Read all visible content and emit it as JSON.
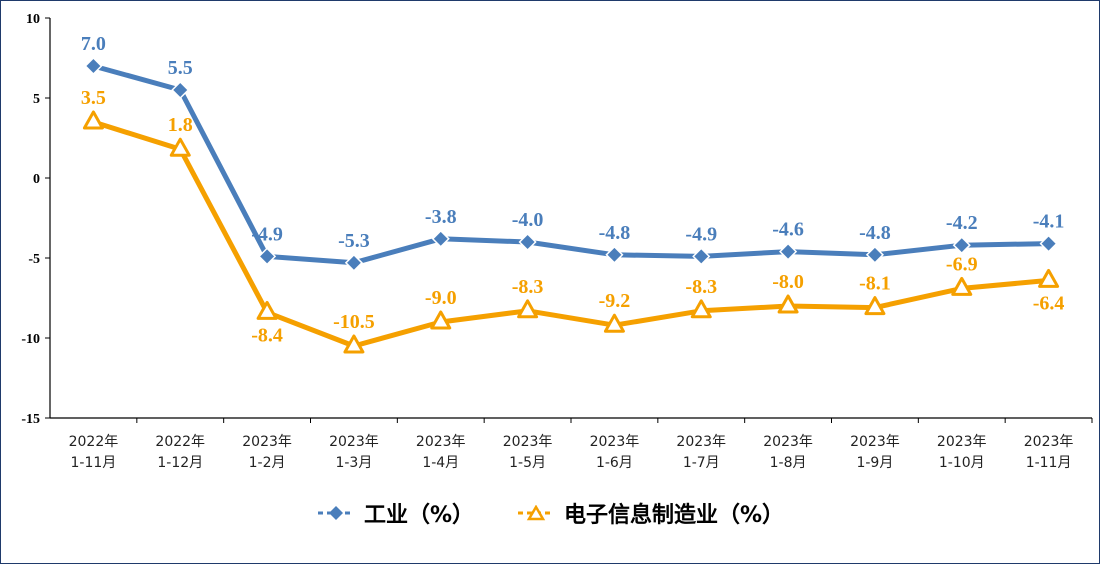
{
  "chart_data": {
    "type": "line",
    "categories": [
      [
        "2022年",
        "1-11月"
      ],
      [
        "2022年",
        "1-12月"
      ],
      [
        "2023年",
        "1-2月"
      ],
      [
        "2023年",
        "1-3月"
      ],
      [
        "2023年",
        "1-4月"
      ],
      [
        "2023年",
        "1-5月"
      ],
      [
        "2023年",
        "1-6月"
      ],
      [
        "2023年",
        "1-7月"
      ],
      [
        "2023年",
        "1-8月"
      ],
      [
        "2023年",
        "1-9月"
      ],
      [
        "2023年",
        "1-10月"
      ],
      [
        "2023年",
        "1-11月"
      ]
    ],
    "series": [
      {
        "name": "工业（%）",
        "values": [
          7.0,
          5.5,
          -4.9,
          -5.3,
          -3.8,
          -4.0,
          -4.8,
          -4.9,
          -4.6,
          -4.8,
          -4.2,
          -4.1
        ],
        "labels": [
          "7.0",
          "5.5",
          "-4.9",
          "-5.3",
          "-3.8",
          "-4.0",
          "-4.8",
          "-4.9",
          "-4.6",
          "-4.8",
          "-4.2",
          "-4.1"
        ],
        "color": "#4a7ebb",
        "marker": "diamond"
      },
      {
        "name": "电子信息制造业（%）",
        "values": [
          3.5,
          1.8,
          -8.4,
          -10.5,
          -9.0,
          -8.3,
          -9.2,
          -8.3,
          -8.0,
          -8.1,
          -6.9,
          -6.4
        ],
        "labels": [
          "3.5",
          "1.8",
          "-8.4",
          "-10.5",
          "-9.0",
          "-8.3",
          "-9.2",
          "-8.3",
          "-8.0",
          "-8.1",
          "-6.9",
          "-6.4"
        ],
        "color": "#f5a000",
        "marker": "triangle"
      }
    ],
    "ylim": [
      -15,
      10
    ],
    "yticks": [
      10,
      5,
      0,
      -5,
      -10,
      -15
    ],
    "grid": false,
    "legend_position": "bottom"
  }
}
